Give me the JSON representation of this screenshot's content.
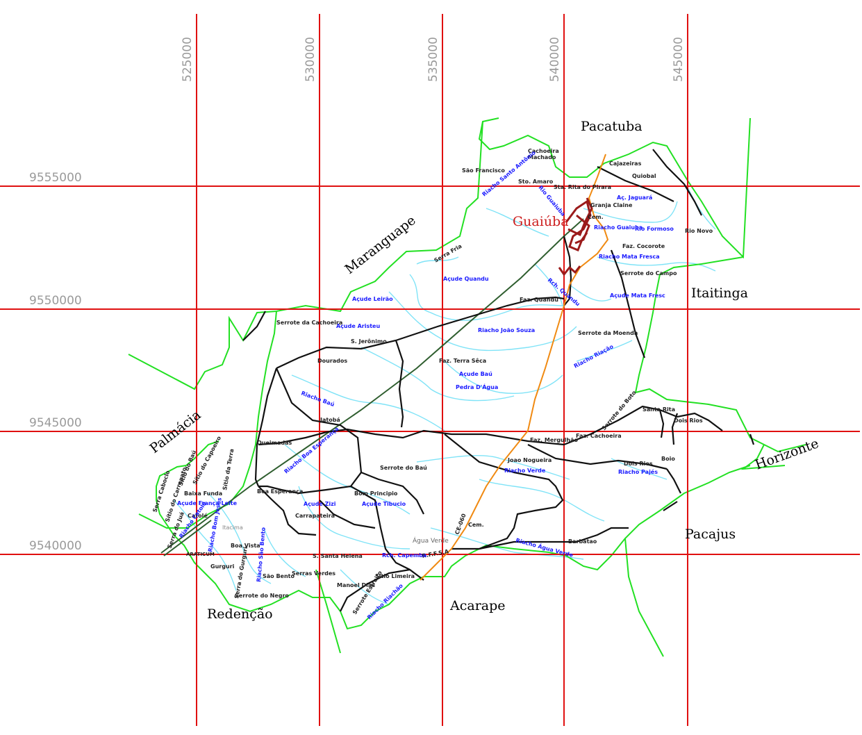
{
  "grid": {
    "eastings": [
      "525000",
      "530000",
      "535000",
      "540000",
      "545000"
    ],
    "northings": [
      "9555000",
      "9550000",
      "9545000",
      "9540000"
    ]
  },
  "municipalities": {
    "pacatuba": "Pacatuba",
    "maranguape": "Maranguape",
    "itaitinga": "Itaitinga",
    "palmacia": "Palmácia",
    "horizonte": "Horizonte",
    "pacajus": "Pacajus",
    "redencao": "Redenção",
    "acarape": "Acarape"
  },
  "town": {
    "name": "Guaiúba",
    "color": "#cc1e1e"
  },
  "places": [
    "Cachoeira",
    "Machado",
    "São Francisco",
    "Sto. Amaro",
    "Sta. Rita do Pirara",
    "Cajazeiras",
    "Quiobal",
    "Granja Claine",
    "Cem.",
    "Faz. Cocorote",
    "Serrote do Campo",
    "Rio Novo",
    "Serra Fria",
    "Faz. Quandu",
    "Serrote da Moenda",
    "Serrote da Cachoeira",
    "S. Jerônimo",
    "Dourados",
    "Faz. Terra Sêca",
    "Jatobá",
    "Queimadas",
    "Serrote do Boto",
    "Santa Rita",
    "Dois Rios",
    "Faz. Cachoeira",
    "Faz. Mergulhão",
    "Joao Nogueira",
    "Dois Rios",
    "Boio",
    "Serrote do Baú",
    "Boa Esperança",
    "Bom Principio",
    "Carrapateira",
    "Baixa Funda",
    "Catolé",
    "Itacima",
    "Boa Vista",
    "ARATICUM",
    "Gurguri",
    "São Bento",
    "Serras Verdes",
    "Serrote do Negro",
    "S. Santa Helena",
    "Manoel Dias",
    "Sitio Limeira",
    "Água Verde",
    "Cem.",
    "Barbatao",
    "R.F.F.S.A",
    "CE-060",
    "Serrote Estreito",
    "Sítio do Baú",
    "Sítio do Capoeiro",
    "Sítio da Terra",
    "Serra Caboclo",
    "Sítio do Carrapato",
    "Serra do Juá",
    "Serra do Gurguri"
  ],
  "water": [
    "Riacho Santo Antônio",
    "Rio Guaiuba",
    "Aç. Jaguará",
    "Riacho Guaiuba",
    "Rio Formoso",
    "Riacho Mata Fresca",
    "Açude Quandu",
    "Rch. Quandu",
    "Açude Mata Fresc",
    "Açude Leirão",
    "Açude Aristeu",
    "Riacho João Souza",
    "Açude Baú",
    "Pedra D'Água",
    "Riacho Riação",
    "Riacho Baú",
    "Riacho Boa Esperança",
    "Açude Zizi",
    "Açude Tibucio",
    "Riacho Verde",
    "Riacho Pajés",
    "Açude França Leite",
    "Riacho Catolé",
    "Riacho Bom Jesus",
    "Riacho São Bento",
    "Rch. Capemba",
    "Riacho Água Verde",
    "Riacho Riachão"
  ],
  "colors": {
    "grid": "#e01010",
    "boundary": "#22e022",
    "river": "#7fe3f7",
    "road": "#111111",
    "highway": "#f08a12",
    "railway": "#2f5e2f",
    "urban_area": "#9b1b1b"
  }
}
